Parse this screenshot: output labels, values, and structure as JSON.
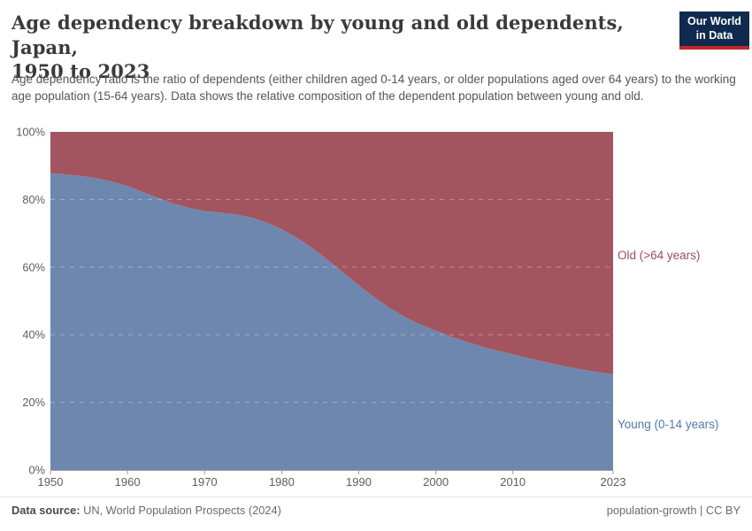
{
  "header": {
    "title_line1": "Age dependency breakdown by young and old dependents, Japan,",
    "title_line2": "1950 to 2023",
    "subtitle": "Age dependency ratio is the ratio of dependents (either children aged 0-14 years, or older populations aged over 64 years) to the working age population (15-64 years). Data shows the relative composition of the dependent population between young and old.",
    "logo": {
      "line1": "Our World",
      "line2": "in Data",
      "bg_color": "#0f2a4e",
      "accent_color": "#c2272d"
    }
  },
  "chart_data": {
    "type": "area",
    "stacked": true,
    "normalized_to_100": true,
    "unit": "%",
    "title": "Age dependency breakdown by young and old dependents, Japan, 1950 to 2023",
    "x": [
      1950,
      1952,
      1954,
      1956,
      1958,
      1960,
      1962,
      1964,
      1966,
      1968,
      1970,
      1972,
      1974,
      1976,
      1978,
      1980,
      1982,
      1984,
      1986,
      1988,
      1990,
      1992,
      1994,
      1996,
      1998,
      2000,
      2002,
      2004,
      2006,
      2008,
      2010,
      2012,
      2014,
      2016,
      2018,
      2020,
      2022,
      2023
    ],
    "series": [
      {
        "name": "Young (0-14 years)",
        "color": "#6e87ae",
        "label_color": "#5578ad",
        "values": [
          87.8,
          87.4,
          86.9,
          86.3,
          85.3,
          84.0,
          82.2,
          80.4,
          78.8,
          77.5,
          76.6,
          76.1,
          75.6,
          74.7,
          73.2,
          71.2,
          68.6,
          65.6,
          62.1,
          58.3,
          54.6,
          51.1,
          47.9,
          45.2,
          43.0,
          41.2,
          39.4,
          37.9,
          36.5,
          35.3,
          34.2,
          33.1,
          32.0,
          31.0,
          30.1,
          29.3,
          28.6,
          28.3
        ]
      },
      {
        "name": "Old (>64 years)",
        "color": "#a2555e",
        "label_color": "#9c4f58",
        "values": [
          12.2,
          12.6,
          13.1,
          13.7,
          14.7,
          16.0,
          17.8,
          19.6,
          21.2,
          22.5,
          23.4,
          23.9,
          24.4,
          25.3,
          26.8,
          28.8,
          31.4,
          34.4,
          37.9,
          41.7,
          45.4,
          48.9,
          52.1,
          54.8,
          57.0,
          58.8,
          60.6,
          62.1,
          63.5,
          64.7,
          65.8,
          66.9,
          68.0,
          69.0,
          69.9,
          70.7,
          71.4,
          71.7
        ]
      }
    ],
    "xlabel": "",
    "ylabel": "",
    "ylim": [
      0,
      100
    ],
    "y_ticks": [
      "0%",
      "20%",
      "40%",
      "60%",
      "80%",
      "100%"
    ],
    "y_tick_values": [
      0,
      20,
      40,
      60,
      80,
      100
    ],
    "grid_values": [
      20,
      40,
      60,
      80
    ],
    "x_ticks": [
      1950,
      1960,
      1970,
      1980,
      1990,
      2000,
      2010,
      2023
    ],
    "grid": "dashed, white, drawn over areas",
    "legend_position": "labels at right edge of plot",
    "axis_color": "#9a9a9a",
    "tick_label_color": "#5d5d5d"
  },
  "footer": {
    "datasource_label": "Data source:",
    "datasource_value": " UN, World Population Prospects (2024)",
    "right_text": "population-growth | CC BY"
  }
}
